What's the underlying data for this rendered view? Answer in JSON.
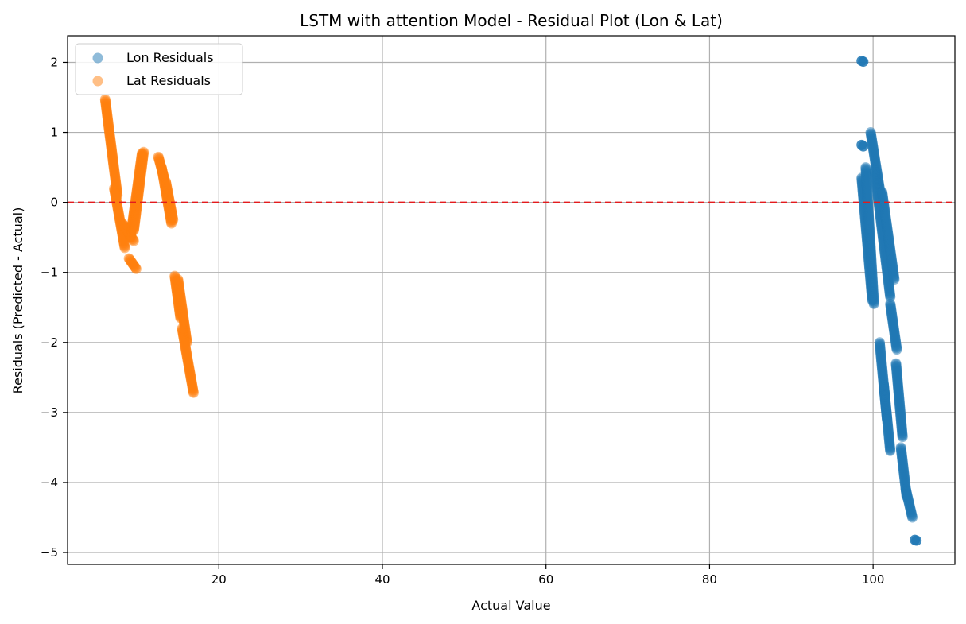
{
  "chart_data": {
    "type": "scatter",
    "title": "LSTM with attention Model - Residual Plot (Lon & Lat)",
    "xlabel": "Actual Value",
    "ylabel": "Residuals (Predicted - Actual)",
    "xlim": [
      1.5,
      110
    ],
    "ylim": [
      -5.17,
      2.38
    ],
    "xticks": [
      20,
      40,
      60,
      80,
      100
    ],
    "yticks": [
      -5,
      -4,
      -3,
      -2,
      -1,
      0,
      1,
      2
    ],
    "xtick_labels": [
      "20",
      "40",
      "60",
      "80",
      "100"
    ],
    "ytick_labels": [
      "−5",
      "−4",
      "−3",
      "−2",
      "−1",
      "0",
      "1",
      "2"
    ],
    "grid": true,
    "legend": "upper-left",
    "reference_line": {
      "y": 0,
      "color": "#e41a1c",
      "style": "dashed"
    },
    "series": [
      {
        "name": "Lon Residuals",
        "color": "#1f77b4",
        "segments": [
          {
            "x": [
              98.6,
              99.9
            ],
            "y": [
              0.35,
              -1.4
            ]
          },
          {
            "x": [
              99.1,
              100.1
            ],
            "y": [
              0.5,
              -1.45
            ]
          },
          {
            "x": [
              99.7,
              101.2
            ],
            "y": [
              1.0,
              -0.1
            ]
          },
          {
            "x": [
              100.2,
              102.1
            ],
            "y": [
              0.45,
              -1.35
            ]
          },
          {
            "x": [
              101.1,
              102.6
            ],
            "y": [
              0.15,
              -1.1
            ]
          },
          {
            "x": [
              102.1,
              102.9
            ],
            "y": [
              -1.45,
              -2.1
            ]
          },
          {
            "x": [
              100.8,
              101.7
            ],
            "y": [
              -2.0,
              -3.1
            ]
          },
          {
            "x": [
              101.3,
              102.1
            ],
            "y": [
              -2.6,
              -3.55
            ]
          },
          {
            "x": [
              102.8,
              103.6
            ],
            "y": [
              -2.3,
              -3.35
            ]
          },
          {
            "x": [
              103.4,
              104.1
            ],
            "y": [
              -3.5,
              -4.2
            ]
          },
          {
            "x": [
              104.0,
              104.8
            ],
            "y": [
              -4.1,
              -4.5
            ]
          }
        ],
        "points": [
          {
            "x": 98.6,
            "y": 2.02
          },
          {
            "x": 98.8,
            "y": 2.01
          },
          {
            "x": 98.6,
            "y": 0.82
          },
          {
            "x": 98.8,
            "y": 0.8
          },
          {
            "x": 105.1,
            "y": -4.82
          },
          {
            "x": 105.3,
            "y": -4.83
          }
        ]
      },
      {
        "name": "Lat Residuals",
        "color": "#ff7f0e",
        "segments": [
          {
            "x": [
              6.1,
              7.6
            ],
            "y": [
              1.47,
              0.1
            ]
          },
          {
            "x": [
              7.2,
              8.5
            ],
            "y": [
              0.2,
              -0.65
            ]
          },
          {
            "x": [
              8.2,
              9.6
            ],
            "y": [
              -0.3,
              -0.55
            ]
          },
          {
            "x": [
              9.2,
              10.6
            ],
            "y": [
              -0.5,
              0.7
            ]
          },
          {
            "x": [
              9.6,
              10.8
            ],
            "y": [
              -0.4,
              0.72
            ]
          },
          {
            "x": [
              9.0,
              9.9
            ],
            "y": [
              -0.8,
              -0.95
            ]
          },
          {
            "x": [
              12.6,
              13.3
            ],
            "y": [
              0.65,
              0.35
            ]
          },
          {
            "x": [
              13.0,
              14.2
            ],
            "y": [
              0.5,
              -0.3
            ]
          },
          {
            "x": [
              13.5,
              14.4
            ],
            "y": [
              0.3,
              -0.25
            ]
          },
          {
            "x": [
              14.6,
              15.3
            ],
            "y": [
              -1.05,
              -1.65
            ]
          },
          {
            "x": [
              15.0,
              16.1
            ],
            "y": [
              -1.1,
              -2.0
            ]
          },
          {
            "x": [
              15.5,
              16.9
            ],
            "y": [
              -1.8,
              -2.72
            ]
          }
        ],
        "points": []
      }
    ]
  }
}
